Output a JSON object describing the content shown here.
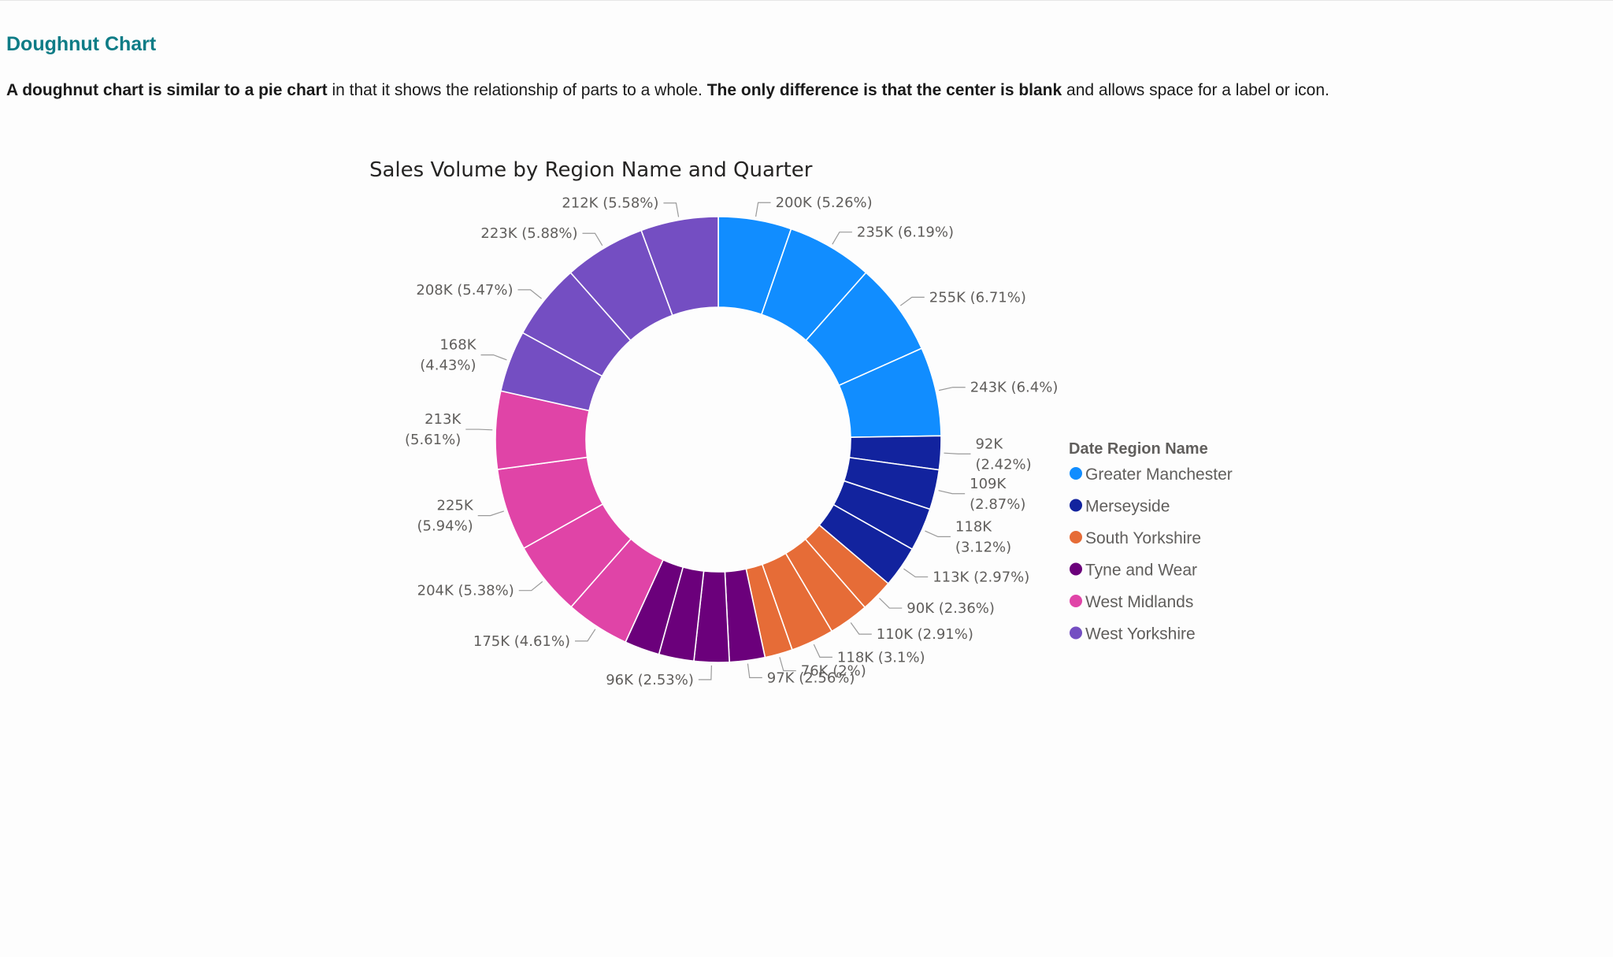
{
  "section": {
    "heading": "Doughnut Chart",
    "description": [
      {
        "text": "A doughnut chart is similar to a pie chart",
        "bold": true
      },
      {
        "text": " in that it shows the relationship of parts to a whole. ",
        "bold": false
      },
      {
        "text": "The only difference is that the center is blank",
        "bold": true
      },
      {
        "text": " and allows space for a label or icon.",
        "bold": false
      }
    ]
  },
  "chart_data": {
    "type": "pie",
    "variant": "doughnut",
    "title": "Sales Volume by Region Name and Quarter",
    "legend_title": "Date Region Name",
    "legend_position": "right",
    "categories": [
      "Greater Manchester",
      "Merseyside",
      "South Yorkshire",
      "Tyne and Wear",
      "West Midlands",
      "West Yorkshire"
    ],
    "colors": {
      "Greater Manchester": "#118dff",
      "Merseyside": "#12239e",
      "South Yorkshire": "#e66c37",
      "Tyne and Wear": "#6b007b",
      "West Midlands": "#e044a7",
      "West Yorkshire": "#744ec2"
    },
    "slices": [
      {
        "region": "Greater Manchester",
        "value": 200000,
        "label": "200K (5.26%)"
      },
      {
        "region": "Greater Manchester",
        "value": 235000,
        "label": "235K (6.19%)"
      },
      {
        "region": "Greater Manchester",
        "value": 255000,
        "label": "255K (6.71%)"
      },
      {
        "region": "Greater Manchester",
        "value": 243000,
        "label": "243K (6.4%)"
      },
      {
        "region": "Merseyside",
        "value": 92000,
        "label": "92K\n(2.42%)"
      },
      {
        "region": "Merseyside",
        "value": 109000,
        "label": "109K\n(2.87%)"
      },
      {
        "region": "Merseyside",
        "value": 118000,
        "label": "118K\n(3.12%)"
      },
      {
        "region": "Merseyside",
        "value": 113000,
        "label": "113K (2.97%)"
      },
      {
        "region": "South Yorkshire",
        "value": 90000,
        "label": "90K (2.36%)"
      },
      {
        "region": "South Yorkshire",
        "value": 110000,
        "label": "110K (2.91%)"
      },
      {
        "region": "South Yorkshire",
        "value": 118000,
        "label": "118K (3.1%)"
      },
      {
        "region": "South Yorkshire",
        "value": 76000,
        "label": "76K (2%)"
      },
      {
        "region": "Tyne and Wear",
        "value": 97000,
        "label": "97K (2.56%)"
      },
      {
        "region": "Tyne and Wear",
        "value": 96000,
        "label": "96K (2.53%)"
      },
      {
        "region": "Tyne and Wear",
        "value": 96000,
        "label": ""
      },
      {
        "region": "Tyne and Wear",
        "value": 96000,
        "label": ""
      },
      {
        "region": "West Midlands",
        "value": 175000,
        "label": "175K (4.61%)"
      },
      {
        "region": "West Midlands",
        "value": 204000,
        "label": "204K (5.38%)"
      },
      {
        "region": "West Midlands",
        "value": 225000,
        "label": "225K\n(5.94%)"
      },
      {
        "region": "West Midlands",
        "value": 213000,
        "label": "213K\n(5.61%)"
      },
      {
        "region": "West Yorkshire",
        "value": 168000,
        "label": "168K\n(4.43%)"
      },
      {
        "region": "West Yorkshire",
        "value": 208000,
        "label": "208K (5.47%)"
      },
      {
        "region": "West Yorkshire",
        "value": 223000,
        "label": "223K (5.88%)"
      },
      {
        "region": "West Yorkshire",
        "value": 212000,
        "label": "212K (5.58%)"
      }
    ]
  }
}
